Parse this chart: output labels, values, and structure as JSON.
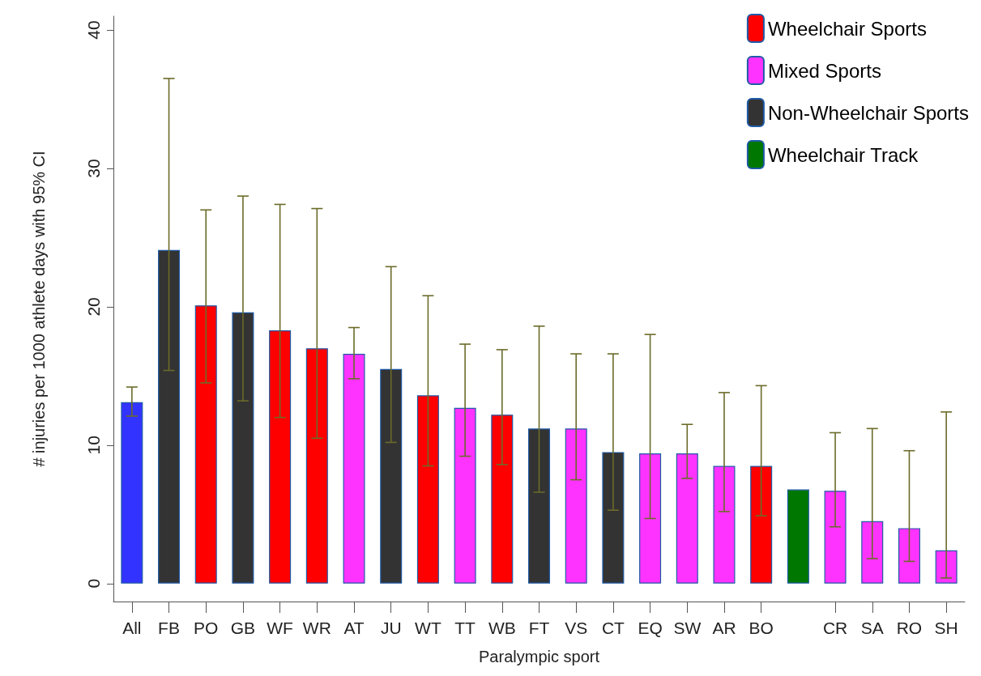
{
  "chart_data": {
    "type": "bar",
    "xlabel": "Paralympic sport",
    "ylabel": "# injuries per 1000 athlete days with 95% CI",
    "categories": [
      "All",
      "FB",
      "PO",
      "GB",
      "WF",
      "WR",
      "AT",
      "JU",
      "WT",
      "TT",
      "WB",
      "FT",
      "VS",
      "CT",
      "EQ",
      "SW",
      "AR",
      "BO",
      null,
      "CR",
      "SA",
      "RO",
      "SH"
    ],
    "series": [
      {
        "color": "#3333ff",
        "values": [
          13.1,
          null,
          null,
          null,
          null,
          null,
          null,
          null,
          null,
          null,
          null,
          null,
          null,
          null,
          null,
          null,
          null,
          null,
          null,
          null,
          null,
          null,
          null
        ],
        "errors": [
          [
            12.1,
            14.2
          ],
          null,
          null,
          null,
          null,
          null,
          null,
          null,
          null,
          null,
          null,
          null,
          null,
          null,
          null,
          null,
          null,
          null,
          null,
          null,
          null,
          null,
          null
        ]
      },
      {
        "name": "Wheelchair Sports",
        "color": "#ff0000",
        "values": [
          null,
          null,
          20.1,
          null,
          18.3,
          17.0,
          null,
          null,
          13.6,
          null,
          12.2,
          null,
          null,
          null,
          null,
          null,
          null,
          8.5,
          null,
          null,
          null,
          null,
          null
        ],
        "errors": [
          null,
          null,
          [
            14.5,
            27.0
          ],
          null,
          [
            12.0,
            27.4
          ],
          [
            10.5,
            27.1
          ],
          null,
          null,
          [
            8.5,
            20.8
          ],
          null,
          [
            8.6,
            16.9
          ],
          null,
          null,
          null,
          null,
          null,
          null,
          [
            4.9,
            14.3
          ],
          null,
          null,
          null,
          null,
          null
        ]
      },
      {
        "name": "Mixed Sports",
        "color": "#ff33ff",
        "values": [
          null,
          null,
          null,
          null,
          null,
          null,
          16.6,
          null,
          null,
          12.7,
          null,
          null,
          11.2,
          null,
          9.4,
          9.4,
          8.5,
          null,
          null,
          6.7,
          4.5,
          4.0,
          2.4
        ],
        "errors": [
          null,
          null,
          null,
          null,
          null,
          null,
          [
            14.8,
            18.5
          ],
          null,
          null,
          [
            9.2,
            17.3
          ],
          null,
          null,
          [
            7.5,
            16.6
          ],
          null,
          [
            4.7,
            18.0
          ],
          [
            7.6,
            11.5
          ],
          [
            5.2,
            13.8
          ],
          null,
          null,
          [
            4.1,
            10.9
          ],
          [
            1.8,
            11.2
          ],
          [
            1.6,
            9.6
          ],
          [
            0.4,
            12.4
          ]
        ]
      },
      {
        "name": "Non-Wheelchair Sports",
        "color": "#333333",
        "values": [
          null,
          24.1,
          null,
          19.6,
          null,
          null,
          null,
          15.5,
          null,
          null,
          null,
          11.2,
          null,
          9.5,
          null,
          null,
          null,
          null,
          null,
          null,
          null,
          null,
          null
        ],
        "errors": [
          null,
          [
            15.4,
            36.5
          ],
          null,
          [
            13.2,
            28.0
          ],
          null,
          null,
          null,
          [
            10.2,
            22.9
          ],
          null,
          null,
          null,
          [
            6.6,
            18.6
          ],
          null,
          [
            5.3,
            16.6
          ],
          null,
          null,
          null,
          null,
          null,
          null,
          null,
          null,
          null
        ]
      },
      {
        "name": "Wheelchair Track",
        "color": "#007700",
        "values": [
          null,
          null,
          null,
          null,
          null,
          null,
          null,
          null,
          null,
          null,
          null,
          null,
          null,
          null,
          null,
          null,
          null,
          null,
          6.8,
          null,
          null,
          null,
          null
        ]
      }
    ],
    "ylim": [
      -1.3,
      41
    ],
    "yticks": [
      0,
      10,
      20,
      30,
      40
    ],
    "grid": false,
    "legend": "top right"
  }
}
